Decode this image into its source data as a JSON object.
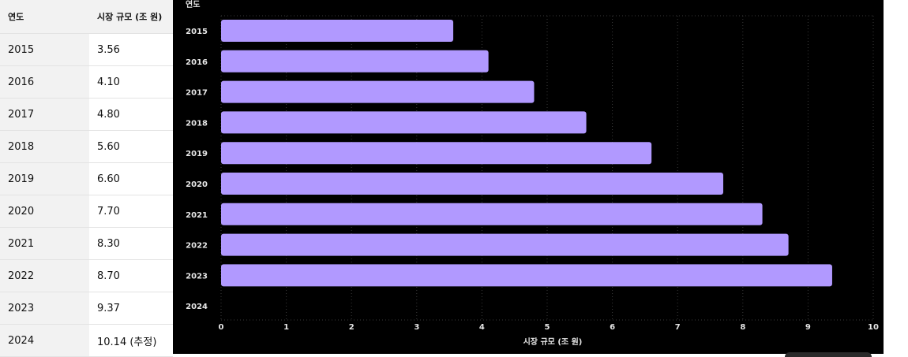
{
  "table": {
    "headers": [
      "연도",
      "시장 규모 (조 원)"
    ],
    "rows": [
      {
        "year": "2015",
        "size": "3.56"
      },
      {
        "year": "2016",
        "size": "4.10"
      },
      {
        "year": "2017",
        "size": "4.80"
      },
      {
        "year": "2018",
        "size": "5.60"
      },
      {
        "year": "2019",
        "size": "6.60"
      },
      {
        "year": "2020",
        "size": "7.70"
      },
      {
        "year": "2021",
        "size": "8.30"
      },
      {
        "year": "2022",
        "size": "8.70"
      },
      {
        "year": "2023",
        "size": "9.37"
      },
      {
        "year": "2024",
        "size": "10.14 (추정)"
      }
    ]
  },
  "chart_data": {
    "type": "bar",
    "orientation": "horizontal",
    "ylabel": "연도",
    "xlabel": "시장 규모 (조 원)",
    "categories": [
      "2015",
      "2016",
      "2017",
      "2018",
      "2019",
      "2020",
      "2021",
      "2022",
      "2023",
      "2024"
    ],
    "values": [
      3.56,
      4.1,
      4.8,
      5.6,
      6.6,
      7.7,
      8.3,
      8.7,
      9.37,
      null
    ],
    "xlim": [
      0,
      10
    ],
    "xticks": [
      "0",
      "1",
      "2",
      "3",
      "4",
      "5",
      "6",
      "7",
      "8",
      "9",
      "10"
    ],
    "grid": true,
    "bar_color": "#b199ff",
    "background": "#000000"
  }
}
